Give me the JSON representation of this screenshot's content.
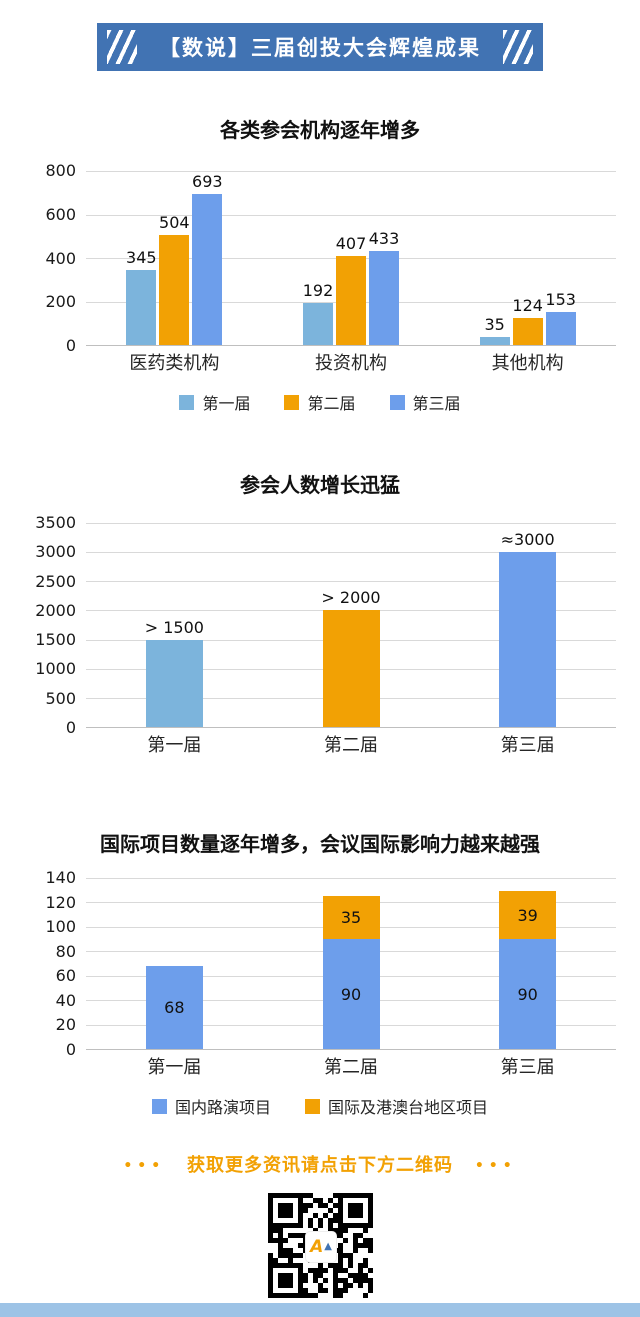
{
  "header": {
    "title": "【数说】三届创投大会辉煌成果"
  },
  "theme": {
    "banner_blue": "#4173B3",
    "series_light_blue": "#7CB4DC",
    "series_orange": "#F2A104",
    "series_cornflower": "#6D9EEB",
    "footer_orange": "#F2A104",
    "bottom_strip_blue": "#9DC3E6"
  },
  "chart_data": [
    {
      "type": "bar",
      "variant": "grouped",
      "title": "各类参会机构逐年增多",
      "categories": [
        "医药类机构",
        "投资机构",
        "其他机构"
      ],
      "series": [
        {
          "name": "第一届",
          "color": "#7CB4DC",
          "values": [
            345,
            192,
            35
          ]
        },
        {
          "name": "第二届",
          "color": "#F2A104",
          "values": [
            504,
            407,
            124
          ]
        },
        {
          "name": "第三届",
          "color": "#6D9EEB",
          "values": [
            693,
            433,
            153
          ]
        }
      ],
      "ylim": [
        0,
        800
      ],
      "ystep": 200,
      "grid": true,
      "legend": true,
      "legend_position": "bottom",
      "value_labels": "above"
    },
    {
      "type": "bar",
      "variant": "simple",
      "title": "参会人数增长迅猛",
      "categories": [
        "第一届",
        "第二届",
        "第三届"
      ],
      "series": [
        {
          "name": "参会人数",
          "colors": [
            "#7CB4DC",
            "#F2A104",
            "#6D9EEB"
          ],
          "values": [
            1500,
            2000,
            3000
          ]
        }
      ],
      "bar_labels": [
        "> 1500",
        "> 2000",
        "≈3000"
      ],
      "ylim": [
        0,
        3500
      ],
      "ystep": 500,
      "grid": true,
      "legend": false,
      "value_labels": "above"
    },
    {
      "type": "bar",
      "variant": "stacked",
      "title": "国际项目数量逐年增多，会议国际影响力越来越强",
      "categories": [
        "第一届",
        "第二届",
        "第三届"
      ],
      "series": [
        {
          "name": "国内路演项目",
          "color": "#6D9EEB",
          "values": [
            68,
            90,
            90
          ]
        },
        {
          "name": "国际及港澳台地区项目",
          "color": "#F2A104",
          "values": [
            0,
            35,
            39
          ]
        }
      ],
      "ylim": [
        0,
        140
      ],
      "ystep": 20,
      "grid": true,
      "legend": true,
      "legend_position": "bottom",
      "value_labels": "inside"
    }
  ],
  "footer": {
    "dots": "•••",
    "cta": "获取更多资讯请点击下方二维码"
  }
}
